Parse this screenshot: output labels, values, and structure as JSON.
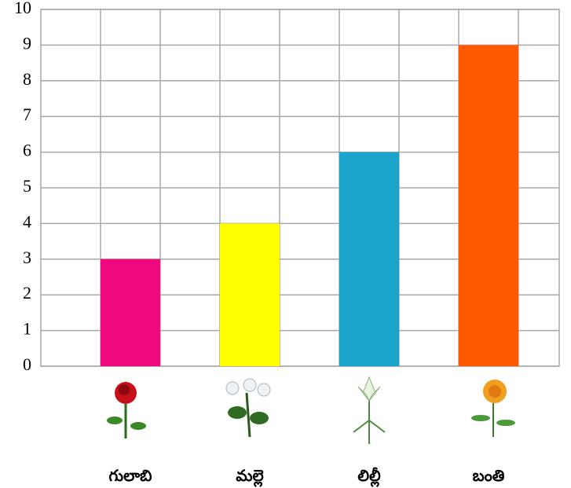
{
  "chart_data": {
    "type": "bar",
    "categories": [
      "గులాబి",
      "మల్లె",
      "లిల్లీ",
      "బంతి"
    ],
    "values": [
      3,
      4,
      6,
      9
    ],
    "colors": [
      "#f0087f",
      "#ffff00",
      "#1ba4c9",
      "#ff5a00"
    ],
    "ylim": [
      0,
      10
    ],
    "yticks": [
      0,
      1,
      2,
      3,
      4,
      5,
      6,
      7,
      8,
      9,
      10
    ],
    "grid": true
  }
}
